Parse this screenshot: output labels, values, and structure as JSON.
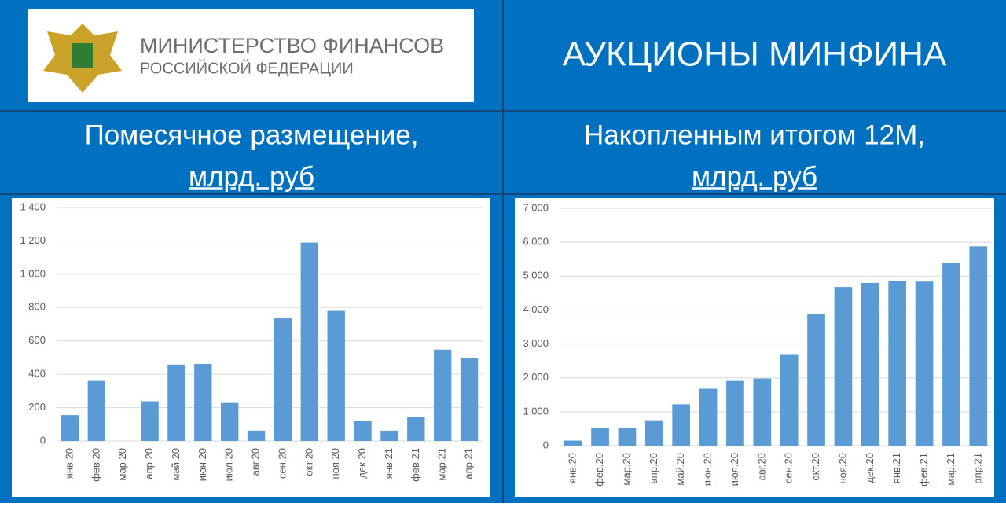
{
  "header": {
    "ministry_line1": "МИНИСТЕРСТВО ФИНАНСОВ",
    "ministry_line2": "РОССИЙСКОЙ ФЕДЕРАЦИИ",
    "title": "АУКЦИОНЫ МИНФИНА"
  },
  "chart_data": [
    {
      "type": "bar",
      "title": "Помесячное размещение,",
      "subtitle": "млрд. руб",
      "categories": [
        "янв.20",
        "фев.20",
        "мар.20",
        "апр.20",
        "май.20",
        "июн.20",
        "июл.20",
        "авг.20",
        "сен.20",
        "окт.20",
        "ноя.20",
        "дек.20",
        "янв.21",
        "фев.21",
        "мар.21",
        "апр.21"
      ],
      "values": [
        155,
        360,
        0,
        238,
        458,
        462,
        228,
        62,
        735,
        1190,
        780,
        118,
        62,
        145,
        548,
        498
      ],
      "color": "#5b9bd5",
      "ylim": [
        0,
        1400
      ],
      "yticks": [
        0,
        200,
        400,
        600,
        800,
        {
          "value": 1000,
          "label": "1 000"
        },
        {
          "value": 1200,
          "label": "1 200"
        },
        {
          "value": 1400,
          "label": "1 400"
        }
      ],
      "grid": true
    },
    {
      "type": "bar",
      "title": "Накопленным итогом 12М,",
      "subtitle": "млрд. руб",
      "categories": [
        "янв.20",
        "фев.20",
        "мар.20",
        "апр.20",
        "май.20",
        "июн.20",
        "июл.20",
        "авг.20",
        "сен.20",
        "окт.20",
        "ноя.20",
        "дек.20",
        "янв.21",
        "фев.21",
        "мар.21",
        "апр.21"
      ],
      "values": [
        150,
        520,
        520,
        750,
        1220,
        1680,
        1910,
        1980,
        2700,
        3880,
        4680,
        4800,
        4860,
        4840,
        5400,
        5880
      ],
      "color": "#5b9bd5",
      "ylim": [
        0,
        7000
      ],
      "yticks": [
        0,
        {
          "value": 1000,
          "label": "1 000"
        },
        {
          "value": 2000,
          "label": "2 000"
        },
        {
          "value": 3000,
          "label": "3 000"
        },
        {
          "value": 4000,
          "label": "4 000"
        },
        {
          "value": 5000,
          "label": "5 000"
        },
        {
          "value": 6000,
          "label": "6 000"
        },
        {
          "value": 7000,
          "label": "7 000"
        }
      ],
      "grid": true
    }
  ]
}
